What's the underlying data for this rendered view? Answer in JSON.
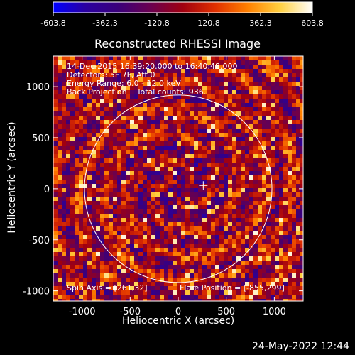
{
  "chart_data": {
    "type": "heatmap",
    "title": "Reconstructed RHESSI Image",
    "xlabel": "Heliocentric X (arcsec)",
    "ylabel": "Heliocentric Y (arcsec)",
    "xlim": [
      -1300,
      1300
    ],
    "ylim": [
      -1100,
      1300
    ],
    "xticks": [
      "-1000",
      "-500",
      "0",
      "500",
      "1000"
    ],
    "yticks": [
      "-1000",
      "-500",
      "0",
      "500",
      "1000"
    ],
    "colorbar": {
      "min": -603.8,
      "max": 603.8,
      "ticks": [
        "-603.8",
        "-362.3",
        "-120.8",
        "120.8",
        "362.3",
        "603.8"
      ],
      "colormap_stops": [
        "#0000ff",
        "#2a00a0",
        "#3a007a",
        "#6a0050",
        "#a00010",
        "#e03000",
        "#ff8000",
        "#ffd040",
        "#ffffff"
      ]
    },
    "solar_disk": {
      "center": [
        0,
        0
      ],
      "radius": 975
    },
    "flare_marker": {
      "x": 261,
      "y": 32
    },
    "annotations": {
      "time": "14-Dec-2015 16:39:20.000 to 16:40:48.000",
      "detectors": "Detectors: 5F 7F, Att 0",
      "energy": "Energy Range: 6.0 - 12.0 keV",
      "method": "Back Projection",
      "counts": "Total counts: 936.",
      "spin_axis": "Spin Axis = [261,32]",
      "flare_position": "Flare Position = [-855,299]"
    }
  },
  "footer": {
    "timestamp": "24-May-2022 12:44"
  }
}
